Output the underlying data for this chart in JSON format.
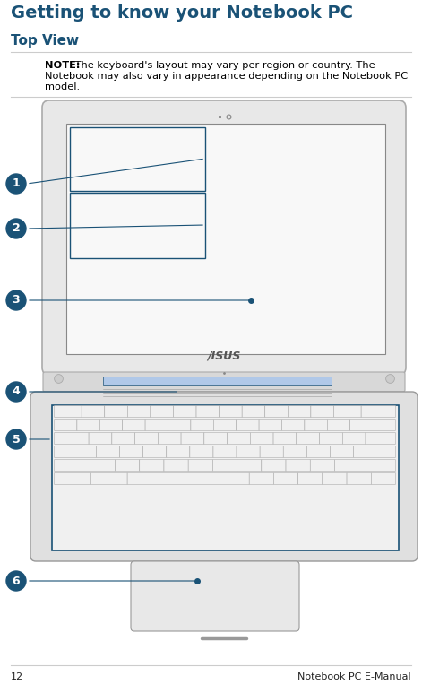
{
  "title": "Getting to know your Notebook PC",
  "subtitle": "Top View",
  "note_bold": "NOTE:",
  "note_text": " The keyboard's layout may vary per region or country. The Notebook may also vary in appearance depending on the Notebook PC model.",
  "page_number": "12",
  "page_label": "Notebook PC E-Manual",
  "title_color": "#1a5276",
  "subtitle_color": "#1a5276",
  "body_text_color": "#000000",
  "bg_color": "#ffffff",
  "circle_color": "#1a5276",
  "circle_text_color": "#ffffff",
  "line_color": "#cccccc",
  "bezel_color": "#e8e8e8",
  "bezel_edge": "#aaaaaa",
  "screen_color": "#f8f8f8",
  "screen_edge": "#888888",
  "key_face": "#f0f0f0",
  "key_edge": "#aaaaaa",
  "kb_body": "#d0d0d0",
  "kb_edge": "#999999",
  "tp_face": "#e8e8e8",
  "tp_edge": "#999999",
  "hinge_color": "#c8d8e8",
  "asus_color": "#555555"
}
